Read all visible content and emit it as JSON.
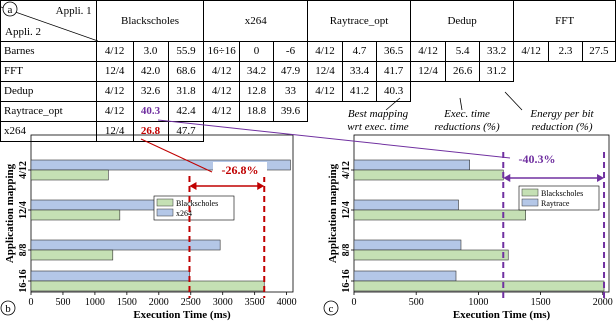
{
  "table": {
    "corner_label": "a",
    "appli1_label": "Appli. 1",
    "appli2_label": "Appli. 2",
    "columns": [
      "Blackscholes",
      "x264",
      "Raytrace_opt",
      "Dedup",
      "FFT"
    ],
    "rows": [
      {
        "name": "Barnes",
        "cells": [
          "4/12",
          "3.0",
          "55.9",
          "16÷16",
          "0",
          "-6",
          "4/12",
          "4.7",
          "36.5",
          "4/12",
          "5.4",
          "33.2",
          "4/12",
          "2.3",
          "27.5"
        ]
      },
      {
        "name": "FFT",
        "cells": [
          "12/4",
          "42.0",
          "68.6",
          "4/12",
          "34.2",
          "47.9",
          "12/4",
          "33.4",
          "41.7",
          "12/4",
          "26.6",
          "31.2"
        ]
      },
      {
        "name": "Dedup",
        "cells": [
          "4/12",
          "32.6",
          "31.8",
          "4/12",
          "12.8",
          "33",
          "4/12",
          "41.2",
          "40.3"
        ]
      },
      {
        "name": "Raytrace_opt",
        "cells": [
          "4/12",
          "40.3",
          "42.4",
          "4/12",
          "18.8",
          "39.6"
        ]
      },
      {
        "name": "x264",
        "cells": [
          "12/4",
          "26.8",
          "47.7"
        ]
      }
    ],
    "notes": [
      "Best mapping\nwrt exec. time",
      "Exec. time\nreductions (%)",
      "Energy per bit\nreduction (%)"
    ]
  },
  "colors": {
    "blue_bar": "#b4c7e7",
    "green_bar": "#c5e0b4",
    "red": "#c00000",
    "purple": "#7030a0"
  },
  "chart_data": [
    {
      "type": "bar",
      "orientation": "horizontal",
      "panel_label": "b",
      "categories": [
        "16-16",
        "8/8",
        "12/4",
        "4/12"
      ],
      "series": [
        {
          "name": "Blackscholes",
          "values": [
            3650,
            1280,
            1390,
            1210
          ]
        },
        {
          "name": "x264",
          "values": [
            2480,
            2960,
            2690,
            4060
          ]
        }
      ],
      "xlabel": "Execution Time (ms)",
      "ylabel": "Application mapping",
      "xlim": [
        0,
        4100
      ],
      "xticks": [
        0,
        500,
        1000,
        1500,
        2000,
        2500,
        3000,
        3500,
        4000
      ],
      "annotation": "-26.8%",
      "legend_position": "center-right"
    },
    {
      "type": "bar",
      "orientation": "horizontal",
      "panel_label": "c",
      "categories": [
        "16-16",
        "8/8",
        "12/4",
        "4/12"
      ],
      "series": [
        {
          "name": "Blackscholes",
          "values": [
            2010,
            1240,
            1380,
            1200
          ]
        },
        {
          "name": "Raytrace",
          "values": [
            820,
            860,
            840,
            930
          ]
        }
      ],
      "xlabel": "Execution Time (ms)",
      "ylabel": "Application mapping",
      "xlim": [
        0,
        2050
      ],
      "xticks": [
        0,
        500,
        1000,
        1500,
        2000
      ],
      "annotation": "-40.3%",
      "legend_position": "center-right"
    }
  ]
}
